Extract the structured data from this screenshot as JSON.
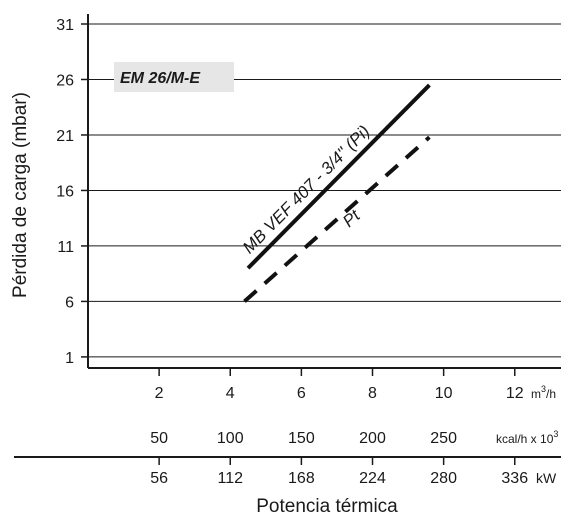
{
  "chart_data": {
    "type": "line",
    "title": "EM 26/M-E",
    "ylabel": "Pérdida de carga (mbar)",
    "xlabel": "Potencia térmica",
    "ylim": [
      0,
      31
    ],
    "yticks": [
      1,
      6,
      11,
      16,
      21,
      26,
      31
    ],
    "grid": true,
    "x_axes": [
      {
        "name": "flow",
        "unit": "m³/h",
        "ticks": [
          2,
          4,
          6,
          8,
          10,
          12
        ],
        "tick_labels": [
          "2",
          "4",
          "6",
          "8",
          "10",
          "12"
        ]
      },
      {
        "name": "kcal",
        "unit": "kcal/h x 10³",
        "ticks": [
          2,
          4,
          6,
          8,
          10
        ],
        "tick_labels": [
          "50",
          "100",
          "150",
          "200",
          "250"
        ]
      },
      {
        "name": "kw",
        "unit": "kW",
        "ticks": [
          2,
          4,
          6,
          8,
          10,
          12
        ],
        "tick_labels": [
          "56",
          "112",
          "168",
          "224",
          "280",
          "336"
        ]
      }
    ],
    "xlim": [
      0,
      13.3
    ],
    "series": [
      {
        "name": "MB VEF 407 - 3/4\" (Pi)",
        "style": "solid",
        "x": [
          4.5,
          9.6
        ],
        "y": [
          9,
          25.5
        ]
      },
      {
        "name": "Pt",
        "style": "dashed",
        "x": [
          4.4,
          9.6
        ],
        "y": [
          6,
          20.8
        ]
      }
    ]
  }
}
